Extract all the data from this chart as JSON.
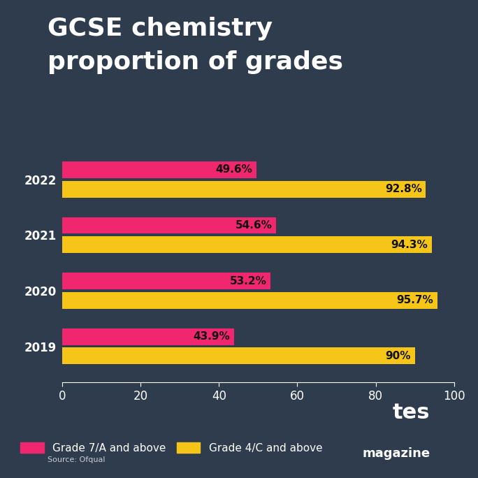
{
  "title_line1": "GCSE chemistry",
  "title_line2": "proportion of grades",
  "years": [
    "2022",
    "2021",
    "2020",
    "2019"
  ],
  "grade7_values": [
    49.6,
    54.6,
    53.2,
    43.9
  ],
  "grade4_values": [
    92.8,
    94.3,
    95.7,
    90.0
  ],
  "grade7_labels": [
    "49.6%",
    "54.6%",
    "53.2%",
    "43.9%"
  ],
  "grade4_labels": [
    "92.8%",
    "94.3%",
    "95.7%",
    "90%"
  ],
  "grade7_color": "#F0266F",
  "grade4_color": "#F5C518",
  "background_color": "#2E3C4E",
  "text_color": "#FFFFFF",
  "bar_label_color": "#111111",
  "xlim": [
    0,
    100
  ],
  "xticks": [
    0,
    20,
    40,
    60,
    80,
    100
  ],
  "legend_label7": "Grade 7/A and above",
  "legend_label4": "Grade 4/C and above",
  "source_text": "Source: Ofqual",
  "title_fontsize": 26,
  "axis_fontsize": 12,
  "bar_label_fontsize": 11,
  "year_fontsize": 12,
  "tes_fontsize": 22,
  "magazine_fontsize": 13
}
